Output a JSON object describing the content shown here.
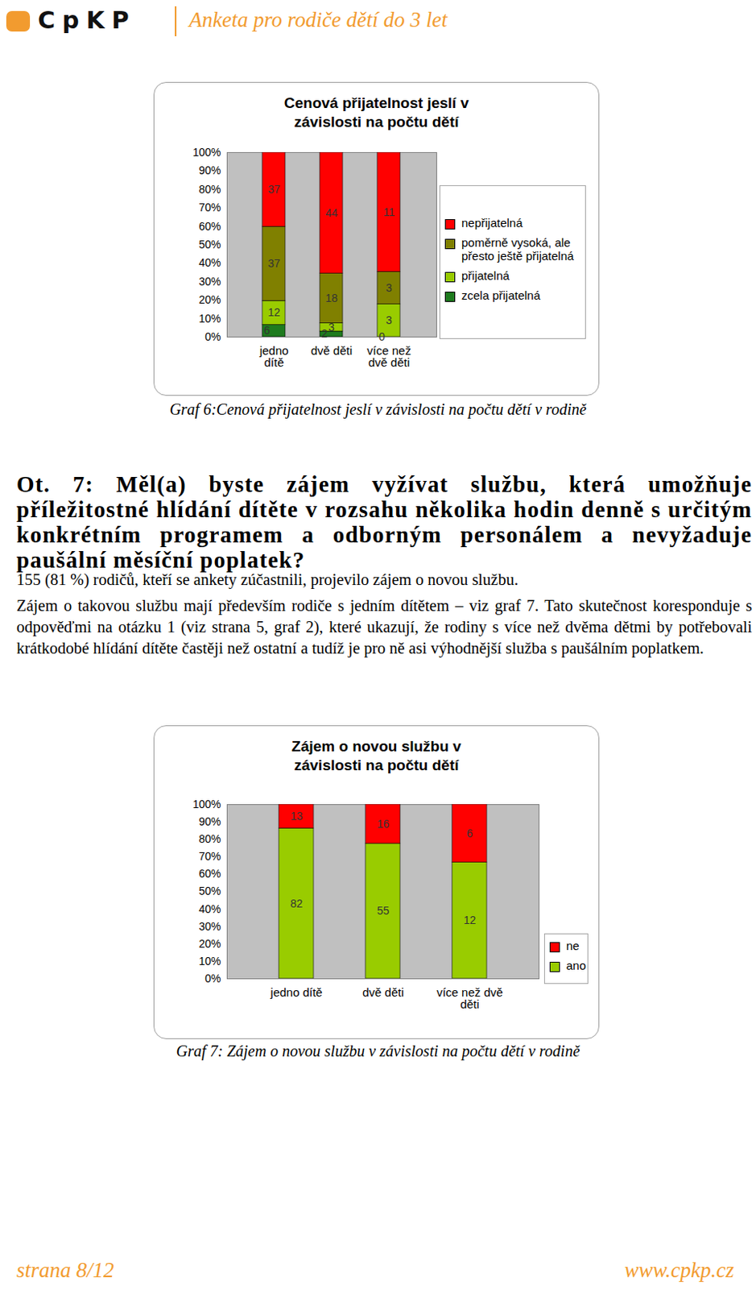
{
  "header": {
    "logo": "CpKP",
    "title": "Anketa pro rodiče dětí do 3 let"
  },
  "chart_data": [
    {
      "type": "bar",
      "stacked": true,
      "title": "Cenová přijatelnost jeslí v závislosti na počtu dětí",
      "categories": [
        "jedno dítě",
        "dvě děti",
        "více než dvě děti"
      ],
      "series": [
        {
          "name": "nepřijatelná",
          "color": "#ff0000",
          "values": [
            37,
            44,
            11
          ]
        },
        {
          "name": "poměrně vysoká, ale přesto ještě přijatelná",
          "color": "#808000",
          "values": [
            37,
            18,
            3
          ]
        },
        {
          "name": "přijatelná",
          "color": "#99cc00",
          "values": [
            12,
            3,
            3
          ]
        },
        {
          "name": "zcela přijatelná",
          "color": "#1e7b1e",
          "values": [
            6,
            2,
            0
          ]
        }
      ],
      "ylim": [
        0,
        100
      ],
      "yticks": [
        {
          "value": 0,
          "label": "0%"
        },
        {
          "value": 10,
          "label": "10%"
        },
        {
          "value": 20,
          "label": "20%"
        },
        {
          "value": 30,
          "label": "30%"
        },
        {
          "value": 40,
          "label": "40%"
        },
        {
          "value": 50,
          "label": "50%"
        },
        {
          "value": 60,
          "label": "60%"
        },
        {
          "value": 70,
          "label": "70%"
        },
        {
          "value": 80,
          "label": "80%"
        },
        {
          "value": 90,
          "label": "90%"
        },
        {
          "value": 100,
          "label": "100%"
        }
      ],
      "grid": false,
      "data_labels": true,
      "legend": "right",
      "caption": "Graf 6:Cenová přijatelnost jeslí v závislosti na počtu dětí v rodině"
    },
    {
      "type": "bar",
      "stacked": true,
      "title": "Zájem o novou službu v závislosti na počtu dětí",
      "categories": [
        "jedno dítě",
        "dvě děti",
        "více než dvě děti"
      ],
      "series": [
        {
          "name": "ne",
          "color": "#ff0000",
          "values": [
            13,
            16,
            6
          ]
        },
        {
          "name": "ano",
          "color": "#99cc00",
          "values": [
            82,
            55,
            12
          ]
        }
      ],
      "ylim": [
        0,
        100
      ],
      "yticks": [
        {
          "value": 0,
          "label": "0%"
        },
        {
          "value": 10,
          "label": "10%"
        },
        {
          "value": 20,
          "label": "20%"
        },
        {
          "value": 30,
          "label": "30%"
        },
        {
          "value": 40,
          "label": "40%"
        },
        {
          "value": 50,
          "label": "50%"
        },
        {
          "value": 60,
          "label": "60%"
        },
        {
          "value": 70,
          "label": "70%"
        },
        {
          "value": 80,
          "label": "80%"
        },
        {
          "value": 90,
          "label": "90%"
        },
        {
          "value": 100,
          "label": "100%"
        }
      ],
      "grid": false,
      "data_labels": true,
      "legend": "right",
      "caption": "Graf 7: Zájem o novou službu v závislosti na počtu dětí v rodině"
    }
  ],
  "section": {
    "heading": "Ot. 7: Měl(a) byste zájem vyžívat službu, která umožňuje příležitostné hlídání dítěte v rozsahu několika hodin denně s určitým konkrétním programem a odborným personálem a nevyžaduje paušální měsíční poplatek?",
    "paragraphs": [
      "155 (81 %) rodičů, kteří se ankety zúčastnili, projevilo zájem o novou službu.",
      "Zájem o takovou službu mají především rodiče s jedním dítětem – viz graf 7. Tato skutečnost koresponduje s odpověďmi na otázku 1 (viz strana 5, graf 2), které ukazují, že rodiny s více než dvěma dětmi by potřebovali krátkodobé hlídání dítěte častěji než ostatní a tudíž je pro ně asi výhodnější služba s paušálním poplatkem."
    ]
  },
  "footer": {
    "page": "strana 8/12",
    "url": "www.cpkp.cz"
  }
}
